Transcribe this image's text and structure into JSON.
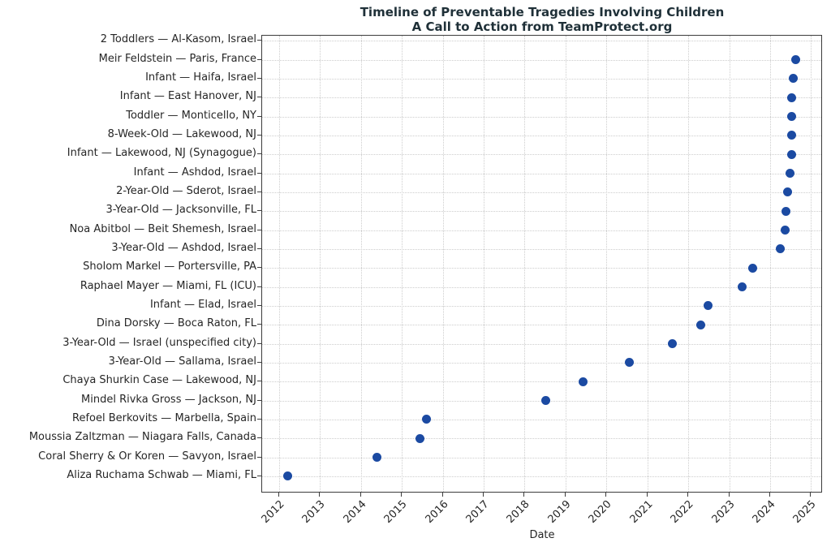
{
  "chart_data": {
    "type": "scatter",
    "title": "Timeline of Preventable Tragedies Involving Children",
    "subtitle": "A Call to Action from TeamProtect.org",
    "xlabel": "Date",
    "x_ticks": [
      "2012",
      "2013",
      "2014",
      "2015",
      "2016",
      "2017",
      "2018",
      "2019",
      "2020",
      "2021",
      "2022",
      "2023",
      "2024",
      "2025"
    ],
    "xlim": [
      2011.585,
      2025.29
    ],
    "grid": true,
    "legend_position": "none",
    "marker_shape": "circle",
    "colors": {
      "marker": "#1b4aa2",
      "grid": "#cdcdcd",
      "spine": "#3c3c3c",
      "title_text": "#1f3038",
      "tick_text": "#262626"
    },
    "points": [
      {
        "label": "2 Toddlers — Al-Kasom, Israel",
        "year": null
      },
      {
        "label": "Meir Feldstein — Paris, France",
        "year": 2024.62
      },
      {
        "label": "Infant — Haifa, Israel",
        "year": 2024.56
      },
      {
        "label": "Infant — East Hanover, NJ",
        "year": 2024.52
      },
      {
        "label": "Toddler — Monticello, NY",
        "year": 2024.52
      },
      {
        "label": "8-Week-Old — Lakewood, NJ",
        "year": 2024.52
      },
      {
        "label": "Infant — Lakewood, NJ (Synagogue)",
        "year": 2024.53
      },
      {
        "label": "Infant — Ashdod, Israel",
        "year": 2024.49
      },
      {
        "label": "2-Year-Old — Sderot, Israel",
        "year": 2024.42
      },
      {
        "label": "3-Year-Old — Jacksonville, FL",
        "year": 2024.38
      },
      {
        "label": "Noa Abitbol — Beit Shemesh, Israel",
        "year": 2024.37
      },
      {
        "label": "3-Year-Old — Ashdod, Israel",
        "year": 2024.24
      },
      {
        "label": "Sholom Markel — Portersville, PA",
        "year": 2023.57
      },
      {
        "label": "Raphael Mayer — Miami, FL (ICU)",
        "year": 2023.32
      },
      {
        "label": "Infant — Elad, Israel",
        "year": 2022.49
      },
      {
        "label": "Dina Dorsky — Boca Raton, FL",
        "year": 2022.31
      },
      {
        "label": "3-Year-Old — Israel (unspecified city)",
        "year": 2021.62
      },
      {
        "label": "3-Year-Old — Sallama, Israel",
        "year": 2020.55
      },
      {
        "label": "Chaya Shurkin Case — Lakewood, NJ",
        "year": 2019.43
      },
      {
        "label": "Mindel Rivka Gross — Jackson, NJ",
        "year": 2018.52
      },
      {
        "label": "Refoel Berkovits — Marbella, Spain",
        "year": 2015.61
      },
      {
        "label": "Moussia Zaltzman — Niagara Falls, Canada",
        "year": 2015.44
      },
      {
        "label": "Coral Sherry & Or Koren — Savyon, Israel",
        "year": 2014.4
      },
      {
        "label": "Aliza Ruchama Schwab — Miami, FL",
        "year": 2012.2
      }
    ]
  }
}
